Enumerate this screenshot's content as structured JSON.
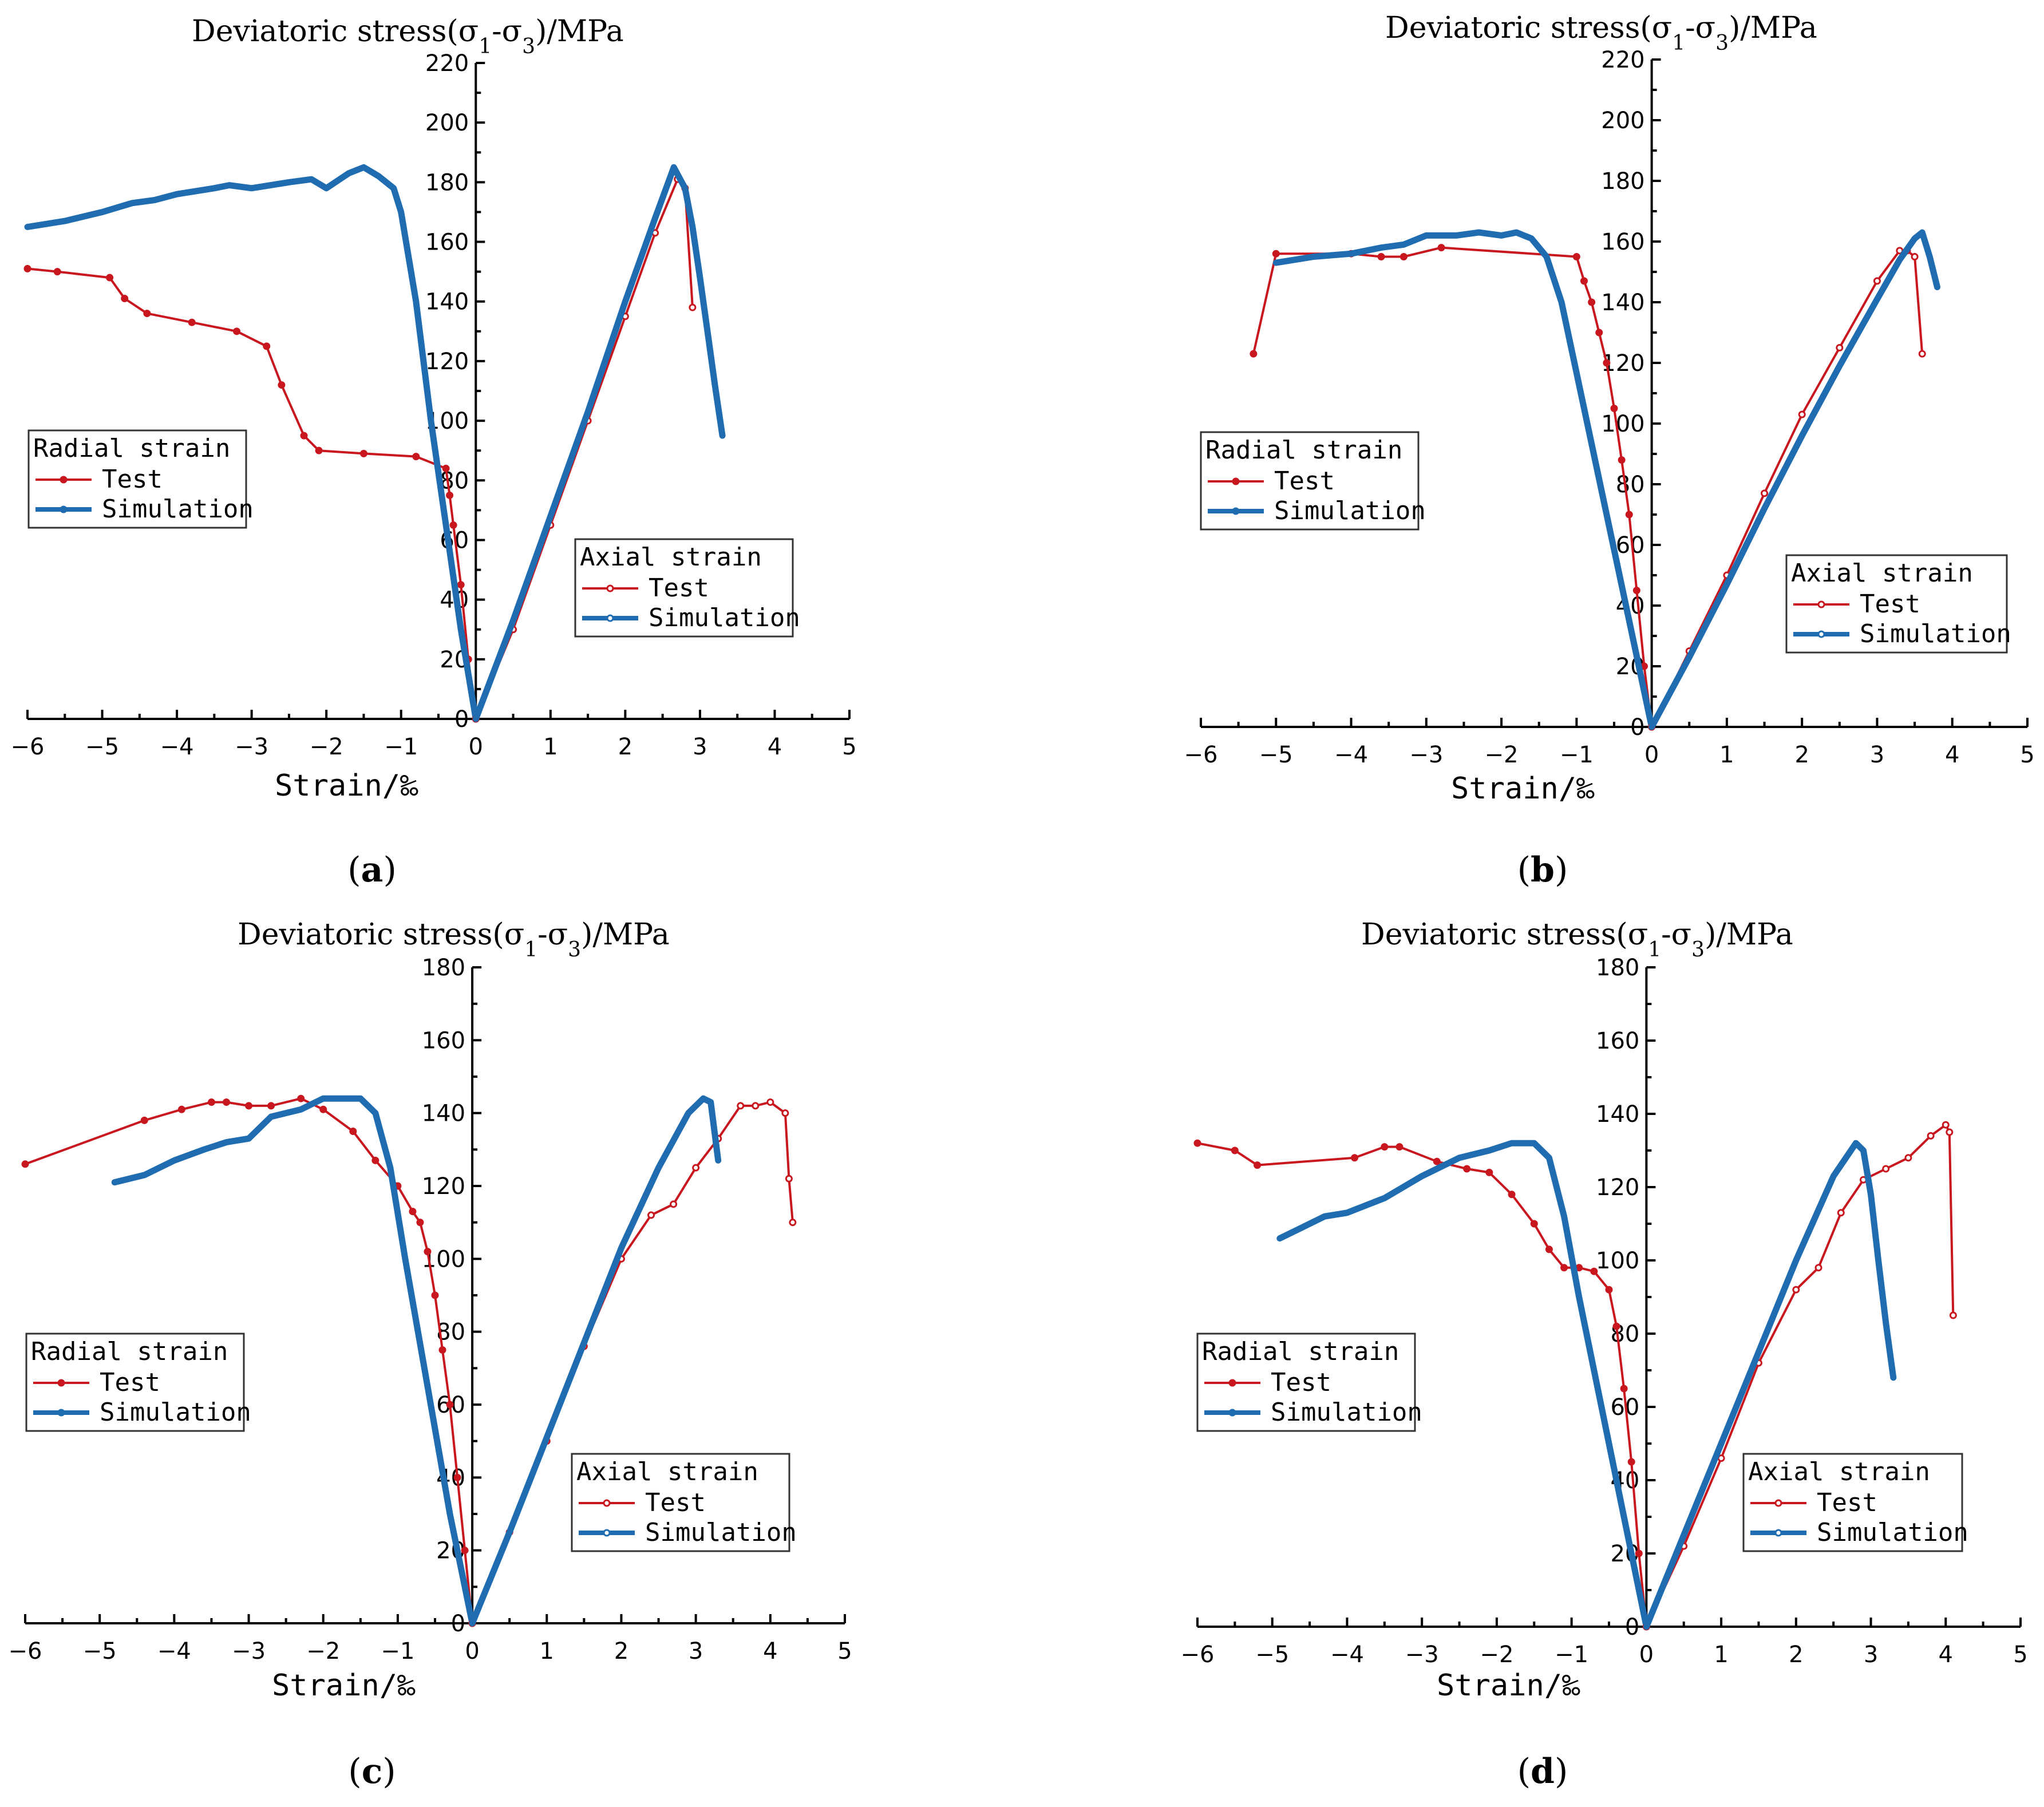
{
  "colors": {
    "test": "#c8171e",
    "simulation": "#1f6cb0"
  },
  "chart_data": [
    {
      "type": "line",
      "panel_label": "(a)",
      "title": "Deviatoric stress(σ1-σ3)/MPa",
      "title_parts": {
        "before": "Deviatoric stress(σ",
        "sub1": "1",
        "mid": "-σ",
        "sub3": "3",
        "after": ")/MPa"
      },
      "xlabel": "Strain/‰",
      "xlim": [
        -6,
        5
      ],
      "ylim": [
        0,
        220
      ],
      "xticks": [
        "−6",
        "−5",
        "−4",
        "−3",
        "−2",
        "−1",
        "0",
        "1",
        "2",
        "3",
        "4",
        "5"
      ],
      "yticks": [
        "0",
        "20",
        "40",
        "60",
        "80",
        "100",
        "120",
        "140",
        "160",
        "180",
        "200",
        "220"
      ],
      "legends": {
        "radial": {
          "title": "Radial strain",
          "test": "Test",
          "simulation": "Simulation"
        },
        "axial": {
          "title": "Axial strain",
          "test": "Test",
          "simulation": "Simulation"
        }
      },
      "series": [
        {
          "name": "Radial strain - Test",
          "group": "radial",
          "kind": "test",
          "x": [
            0,
            -0.1,
            -0.2,
            -0.3,
            -0.35,
            -0.4,
            -0.8,
            -1.5,
            -2.1,
            -2.3,
            -2.6,
            -2.8,
            -3.2,
            -3.8,
            -4.4,
            -4.7,
            -4.9,
            -5.6,
            -6.0
          ],
          "y": [
            0,
            20,
            45,
            65,
            75,
            84,
            88,
            89,
            90,
            95,
            112,
            125,
            130,
            133,
            136,
            141,
            148,
            150,
            151
          ]
        },
        {
          "name": "Radial strain - Simulation",
          "group": "radial",
          "kind": "simulation",
          "x": [
            0,
            -0.2,
            -0.4,
            -0.6,
            -0.8,
            -1.0,
            -1.1,
            -1.3,
            -1.5,
            -1.7,
            -2.0,
            -2.2,
            -2.5,
            -3.0,
            -3.3,
            -3.5,
            -4.0,
            -4.3,
            -4.6,
            -5.0,
            -5.5,
            -6.0
          ],
          "y": [
            0,
            30,
            65,
            100,
            140,
            170,
            178,
            182,
            185,
            183,
            178,
            181,
            180,
            178,
            179,
            178,
            176,
            174,
            173,
            170,
            167,
            165
          ]
        },
        {
          "name": "Axial strain - Test",
          "group": "axial",
          "kind": "test",
          "x": [
            0,
            0.5,
            1.0,
            1.5,
            2.0,
            2.4,
            2.7,
            2.8,
            2.9
          ],
          "y": [
            0,
            30,
            65,
            100,
            135,
            163,
            181,
            178,
            138
          ]
        },
        {
          "name": "Axial strain - Simulation",
          "group": "axial",
          "kind": "simulation",
          "x": [
            0,
            0.5,
            1.0,
            1.5,
            2.0,
            2.4,
            2.65,
            2.8,
            2.9,
            3.0,
            3.1,
            3.2,
            3.3
          ],
          "y": [
            0,
            33,
            68,
            103,
            140,
            168,
            185,
            178,
            165,
            148,
            130,
            112,
            95
          ]
        }
      ]
    },
    {
      "type": "line",
      "panel_label": "(b)",
      "title": "Deviatoric stress(σ1-σ3)/MPa",
      "title_parts": {
        "before": "Deviatoric stress(σ",
        "sub1": "1",
        "mid": "-σ",
        "sub3": "3",
        "after": ")/MPa"
      },
      "xlabel": "Strain/‰",
      "xlim": [
        -6,
        5
      ],
      "ylim": [
        0,
        220
      ],
      "xticks": [
        "−6",
        "−5",
        "−4",
        "−3",
        "−2",
        "−1",
        "0",
        "1",
        "2",
        "3",
        "4",
        "5"
      ],
      "yticks": [
        "0",
        "20",
        "40",
        "60",
        "80",
        "100",
        "120",
        "140",
        "160",
        "180",
        "200",
        "220"
      ],
      "legends": {
        "radial": {
          "title": "Radial strain",
          "test": "Test",
          "simulation": "Simulation"
        },
        "axial": {
          "title": "Axial strain",
          "test": "Test",
          "simulation": "Simulation"
        }
      },
      "series": [
        {
          "name": "Radial strain - Test",
          "group": "radial",
          "kind": "test",
          "x": [
            0,
            -0.1,
            -0.2,
            -0.3,
            -0.4,
            -0.5,
            -0.6,
            -0.7,
            -0.8,
            -0.9,
            -1.0,
            -2.8,
            -3.3,
            -3.6,
            -4.0,
            -5.0,
            -5.3
          ],
          "y": [
            0,
            20,
            45,
            70,
            88,
            105,
            120,
            130,
            140,
            147,
            155,
            158,
            155,
            155,
            156,
            156,
            123
          ]
        },
        {
          "name": "Radial strain - Simulation",
          "group": "radial",
          "kind": "simulation",
          "x": [
            0,
            -0.3,
            -0.6,
            -0.9,
            -1.2,
            -1.4,
            -1.6,
            -1.8,
            -2.0,
            -2.3,
            -2.6,
            -3.0,
            -3.3,
            -3.6,
            -4.0,
            -4.5,
            -5.0
          ],
          "y": [
            0,
            35,
            70,
            105,
            140,
            155,
            161,
            163,
            162,
            163,
            162,
            162,
            159,
            158,
            156,
            155,
            153
          ]
        },
        {
          "name": "Axial strain - Test",
          "group": "axial",
          "kind": "test",
          "x": [
            0,
            0.5,
            1.0,
            1.5,
            2.0,
            2.5,
            3.0,
            3.3,
            3.4,
            3.5,
            3.6
          ],
          "y": [
            0,
            25,
            50,
            77,
            103,
            125,
            147,
            157,
            157,
            155,
            123
          ]
        },
        {
          "name": "Axial strain - Simulation",
          "group": "axial",
          "kind": "simulation",
          "x": [
            0,
            0.5,
            1.0,
            1.5,
            2.0,
            2.5,
            3.0,
            3.3,
            3.5,
            3.6,
            3.7,
            3.8
          ],
          "y": [
            0,
            23,
            47,
            72,
            96,
            119,
            141,
            154,
            161,
            163,
            155,
            145
          ]
        }
      ]
    },
    {
      "type": "line",
      "panel_label": "(c)",
      "title": "Deviatoric stress(σ1-σ3)/MPa",
      "title_parts": {
        "before": "Deviatoric stress(σ",
        "sub1": "1",
        "mid": "-σ",
        "sub3": "3",
        "after": ")/MPa"
      },
      "xlabel": "Strain/‰",
      "xlim": [
        -6,
        5
      ],
      "ylim": [
        0,
        180
      ],
      "xticks": [
        "−6",
        "−5",
        "−4",
        "−3",
        "−2",
        "−1",
        "0",
        "1",
        "2",
        "3",
        "4",
        "5"
      ],
      "yticks": [
        "0",
        "20",
        "40",
        "60",
        "80",
        "100",
        "120",
        "140",
        "160",
        "180"
      ],
      "legends": {
        "radial": {
          "title": "Radial strain",
          "test": "Test",
          "simulation": "Simulation"
        },
        "axial": {
          "title": "Axial strain",
          "test": "Test",
          "simulation": "Simulation"
        }
      },
      "series": [
        {
          "name": "Radial strain - Test",
          "group": "radial",
          "kind": "test",
          "x": [
            0,
            -0.1,
            -0.2,
            -0.3,
            -0.4,
            -0.5,
            -0.6,
            -0.7,
            -0.8,
            -1.0,
            -1.3,
            -1.6,
            -2.0,
            -2.3,
            -2.7,
            -3.0,
            -3.3,
            -3.5,
            -3.9,
            -4.4,
            -6.0
          ],
          "y": [
            0,
            20,
            40,
            60,
            75,
            90,
            102,
            110,
            113,
            120,
            127,
            135,
            141,
            144,
            142,
            142,
            143,
            143,
            141,
            138,
            126
          ]
        },
        {
          "name": "Radial strain - Simulation",
          "group": "radial",
          "kind": "simulation",
          "x": [
            0,
            -0.3,
            -0.6,
            -0.9,
            -1.1,
            -1.3,
            -1.5,
            -2.0,
            -2.3,
            -2.7,
            -3.0,
            -3.3,
            -3.6,
            -4.0,
            -4.4,
            -4.8
          ],
          "y": [
            0,
            30,
            65,
            100,
            125,
            140,
            144,
            144,
            141,
            139,
            133,
            132,
            130,
            127,
            123,
            121
          ]
        },
        {
          "name": "Axial strain - Test",
          "group": "axial",
          "kind": "test",
          "x": [
            0,
            0.5,
            1.0,
            1.5,
            2.0,
            2.4,
            2.7,
            3.0,
            3.3,
            3.6,
            3.8,
            4.0,
            4.2,
            4.25,
            4.3
          ],
          "y": [
            0,
            25,
            50,
            76,
            100,
            112,
            115,
            125,
            133,
            142,
            142,
            143,
            140,
            122,
            110
          ]
        },
        {
          "name": "Axial strain - Simulation",
          "group": "axial",
          "kind": "simulation",
          "x": [
            0,
            0.5,
            1.0,
            1.5,
            2.0,
            2.5,
            2.9,
            3.1,
            3.2,
            3.25,
            3.3
          ],
          "y": [
            0,
            25,
            51,
            77,
            103,
            125,
            140,
            144,
            143,
            135,
            127
          ]
        }
      ]
    },
    {
      "type": "line",
      "panel_label": "(d)",
      "title": "Deviatoric stress(σ1-σ3)/MPa",
      "title_parts": {
        "before": "Deviatoric stress(σ",
        "sub1": "1",
        "mid": "-σ",
        "sub3": "3",
        "after": ")/MPa"
      },
      "xlabel": "Strain/‰",
      "xlim": [
        -6,
        5
      ],
      "ylim": [
        0,
        180
      ],
      "xticks": [
        "−6",
        "−5",
        "−4",
        "−3",
        "−2",
        "−1",
        "0",
        "1",
        "2",
        "3",
        "4",
        "5"
      ],
      "yticks": [
        "0",
        "20",
        "40",
        "60",
        "80",
        "100",
        "120",
        "140",
        "160",
        "180"
      ],
      "legends": {
        "radial": {
          "title": "Radial strain",
          "test": "Test",
          "simulation": "Simulation"
        },
        "axial": {
          "title": "Axial strain",
          "test": "Test",
          "simulation": "Simulation"
        }
      },
      "series": [
        {
          "name": "Radial strain - Test",
          "group": "radial",
          "kind": "test",
          "x": [
            0,
            -0.1,
            -0.2,
            -0.3,
            -0.4,
            -0.5,
            -0.7,
            -0.9,
            -1.1,
            -1.3,
            -1.5,
            -1.8,
            -2.1,
            -2.4,
            -2.8,
            -3.3,
            -3.5,
            -3.9,
            -5.2,
            -5.5,
            -6.0
          ],
          "y": [
            0,
            20,
            45,
            65,
            82,
            92,
            97,
            98,
            98,
            103,
            110,
            118,
            124,
            125,
            127,
            131,
            131,
            128,
            126,
            130,
            132
          ]
        },
        {
          "name": "Radial strain - Simulation",
          "group": "radial",
          "kind": "simulation",
          "x": [
            0,
            -0.3,
            -0.6,
            -0.9,
            -1.1,
            -1.3,
            -1.5,
            -1.8,
            -2.1,
            -2.5,
            -3.0,
            -3.5,
            -4.0,
            -4.3,
            -4.6,
            -4.9
          ],
          "y": [
            0,
            30,
            60,
            90,
            112,
            128,
            132,
            132,
            130,
            128,
            123,
            117,
            113,
            112,
            109,
            106
          ]
        },
        {
          "name": "Axial strain - Test",
          "group": "axial",
          "kind": "test",
          "x": [
            0,
            0.5,
            1.0,
            1.5,
            2.0,
            2.3,
            2.6,
            2.9,
            3.2,
            3.5,
            3.8,
            4.0,
            4.05,
            4.1
          ],
          "y": [
            0,
            22,
            46,
            72,
            92,
            98,
            113,
            122,
            125,
            128,
            134,
            137,
            135,
            85
          ]
        },
        {
          "name": "Axial strain - Simulation",
          "group": "axial",
          "kind": "simulation",
          "x": [
            0,
            0.5,
            1.0,
            1.5,
            2.0,
            2.5,
            2.8,
            2.9,
            3.0,
            3.1,
            3.2,
            3.3
          ],
          "y": [
            0,
            25,
            50,
            75,
            100,
            123,
            132,
            130,
            118,
            100,
            83,
            68
          ]
        }
      ]
    }
  ]
}
